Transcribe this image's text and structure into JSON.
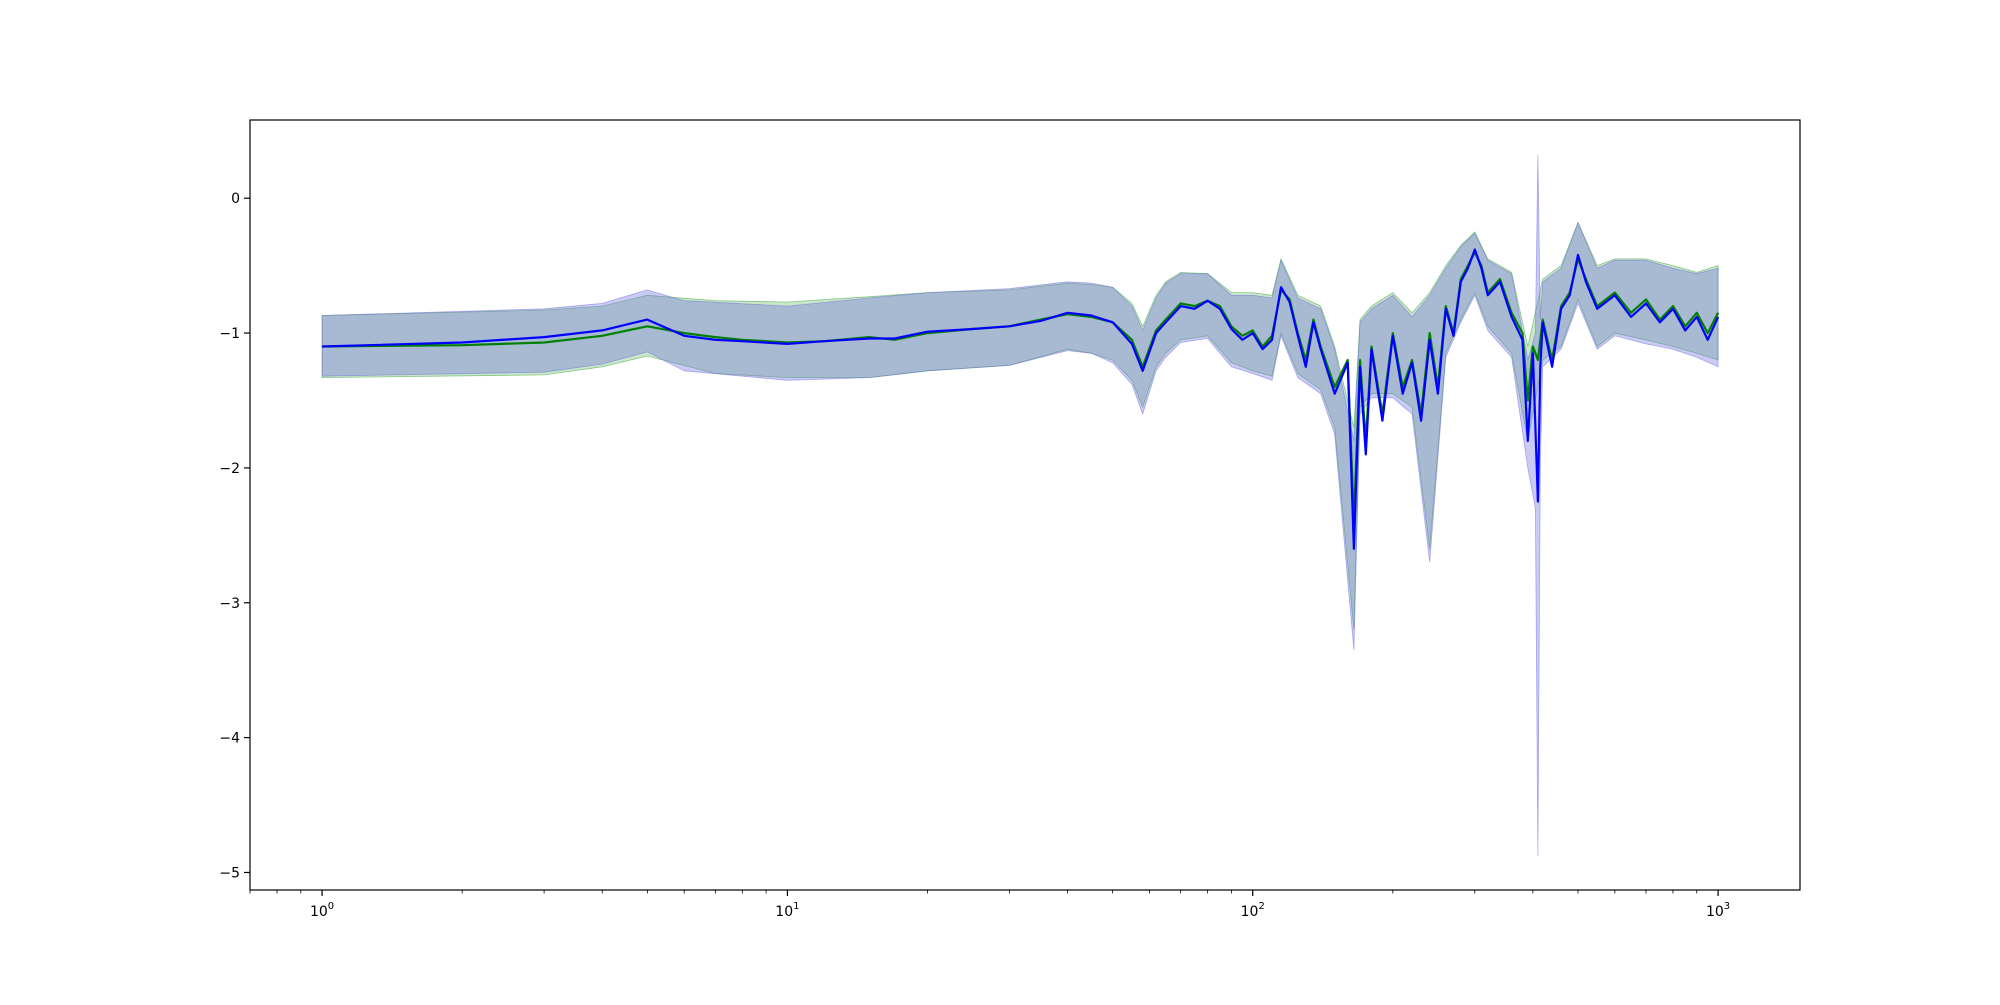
{
  "chart_data": {
    "type": "line",
    "title": "",
    "xlabel": "",
    "ylabel": "",
    "x_scale": "log",
    "xlim": [
      0.7,
      1500
    ],
    "ylim": [
      -5.13,
      0.58
    ],
    "grid": false,
    "legend": "none",
    "x_ticks": [
      {
        "value": 1,
        "label": "10",
        "exp": "0"
      },
      {
        "value": 10,
        "label": "10",
        "exp": "1"
      },
      {
        "value": 100,
        "label": "10",
        "exp": "2"
      },
      {
        "value": 1000,
        "label": "10",
        "exp": "3"
      }
    ],
    "y_ticks": [
      {
        "value": 0,
        "label": "0"
      },
      {
        "value": -1,
        "label": "−1"
      },
      {
        "value": -2,
        "label": "−2"
      },
      {
        "value": -3,
        "label": "−3"
      },
      {
        "value": -4,
        "label": "−4"
      },
      {
        "value": -5,
        "label": "−5"
      }
    ],
    "series": [
      {
        "color": "#008000",
        "band_color": "#2ca02c",
        "points": [
          [
            1,
            -1.1
          ],
          [
            2,
            -1.09
          ],
          [
            3,
            -1.07
          ],
          [
            4,
            -1.02
          ],
          [
            5,
            -0.95
          ],
          [
            6,
            -1.0
          ],
          [
            7,
            -1.03
          ],
          [
            8,
            -1.05
          ],
          [
            10,
            -1.07
          ],
          [
            12,
            -1.06
          ],
          [
            15,
            -1.03
          ],
          [
            17,
            -1.05
          ],
          [
            20,
            -1.0
          ],
          [
            25,
            -0.97
          ],
          [
            30,
            -0.95
          ],
          [
            35,
            -0.9
          ],
          [
            40,
            -0.86
          ],
          [
            45,
            -0.88
          ],
          [
            50,
            -0.92
          ],
          [
            55,
            -1.05
          ],
          [
            58,
            -1.25
          ],
          [
            62,
            -0.98
          ],
          [
            65,
            -0.9
          ],
          [
            70,
            -0.78
          ],
          [
            75,
            -0.8
          ],
          [
            80,
            -0.76
          ],
          [
            85,
            -0.8
          ],
          [
            90,
            -0.95
          ],
          [
            95,
            -1.02
          ],
          [
            100,
            -0.98
          ],
          [
            105,
            -1.1
          ],
          [
            110,
            -1.02
          ],
          [
            115,
            -0.68
          ],
          [
            120,
            -0.75
          ],
          [
            125,
            -1.0
          ],
          [
            130,
            -1.2
          ],
          [
            135,
            -0.9
          ],
          [
            140,
            -1.1
          ],
          [
            150,
            -1.4
          ],
          [
            160,
            -1.2
          ],
          [
            165,
            -2.4
          ],
          [
            170,
            -1.2
          ],
          [
            175,
            -1.8
          ],
          [
            180,
            -1.1
          ],
          [
            190,
            -1.6
          ],
          [
            200,
            -1.0
          ],
          [
            210,
            -1.4
          ],
          [
            220,
            -1.2
          ],
          [
            230,
            -1.6
          ],
          [
            240,
            -1.0
          ],
          [
            250,
            -1.4
          ],
          [
            260,
            -0.8
          ],
          [
            270,
            -1.0
          ],
          [
            280,
            -0.6
          ],
          [
            290,
            -0.5
          ],
          [
            300,
            -0.4
          ],
          [
            310,
            -0.5
          ],
          [
            320,
            -0.7
          ],
          [
            340,
            -0.6
          ],
          [
            360,
            -0.85
          ],
          [
            380,
            -1.0
          ],
          [
            390,
            -1.5
          ],
          [
            400,
            -1.1
          ],
          [
            410,
            -1.2
          ],
          [
            420,
            -0.9
          ],
          [
            440,
            -1.2
          ],
          [
            460,
            -0.8
          ],
          [
            480,
            -0.7
          ],
          [
            500,
            -0.45
          ],
          [
            520,
            -0.6
          ],
          [
            550,
            -0.8
          ],
          [
            600,
            -0.7
          ],
          [
            650,
            -0.85
          ],
          [
            700,
            -0.75
          ],
          [
            750,
            -0.9
          ],
          [
            800,
            -0.8
          ],
          [
            850,
            -0.95
          ],
          [
            900,
            -0.85
          ],
          [
            950,
            -1.0
          ],
          [
            1000,
            -0.85
          ]
        ],
        "band": [
          [
            1,
            -1.33,
            -0.87
          ],
          [
            3,
            -1.31,
            -0.83
          ],
          [
            4,
            -1.25,
            -0.8
          ],
          [
            5,
            -1.17,
            -0.72
          ],
          [
            7,
            -1.3,
            -0.76
          ],
          [
            10,
            -1.33,
            -0.77
          ],
          [
            15,
            -1.33,
            -0.73
          ],
          [
            20,
            -1.28,
            -0.7
          ],
          [
            30,
            -1.24,
            -0.68
          ],
          [
            40,
            -1.12,
            -0.63
          ],
          [
            45,
            -1.15,
            -0.64
          ],
          [
            50,
            -1.2,
            -0.66
          ],
          [
            55,
            -1.35,
            -0.78
          ],
          [
            58,
            -1.55,
            -0.95
          ],
          [
            62,
            -1.25,
            -0.72
          ],
          [
            65,
            -1.15,
            -0.62
          ],
          [
            70,
            -1.05,
            -0.55
          ],
          [
            80,
            -1.02,
            -0.56
          ],
          [
            90,
            -1.22,
            -0.7
          ],
          [
            100,
            -1.28,
            -0.7
          ],
          [
            110,
            -1.32,
            -0.72
          ],
          [
            115,
            -1.0,
            -0.45
          ],
          [
            125,
            -1.3,
            -0.72
          ],
          [
            140,
            -1.42,
            -0.8
          ],
          [
            150,
            -1.7,
            -1.1
          ],
          [
            165,
            -3.2,
            -1.7
          ],
          [
            170,
            -1.55,
            -0.9
          ],
          [
            180,
            -1.45,
            -0.8
          ],
          [
            200,
            -1.45,
            -0.7
          ],
          [
            220,
            -1.55,
            -0.85
          ],
          [
            240,
            -2.6,
            -0.7
          ],
          [
            260,
            -1.15,
            -0.5
          ],
          [
            280,
            -0.9,
            -0.35
          ],
          [
            300,
            -0.7,
            -0.25
          ],
          [
            320,
            -0.95,
            -0.45
          ],
          [
            360,
            -1.15,
            -0.55
          ],
          [
            390,
            -1.8,
            -1.1
          ],
          [
            420,
            -1.2,
            -0.6
          ],
          [
            460,
            -1.1,
            -0.5
          ],
          [
            500,
            -0.75,
            -0.18
          ],
          [
            550,
            -1.1,
            -0.5
          ],
          [
            600,
            -1.0,
            -0.45
          ],
          [
            700,
            -1.05,
            -0.45
          ],
          [
            800,
            -1.1,
            -0.5
          ],
          [
            900,
            -1.15,
            -0.55
          ],
          [
            1000,
            -1.2,
            -0.5
          ]
        ]
      },
      {
        "color": "#0000ff",
        "band_color": "#6666e0",
        "points": [
          [
            1,
            -1.1
          ],
          [
            2,
            -1.07
          ],
          [
            3,
            -1.03
          ],
          [
            4,
            -0.98
          ],
          [
            5,
            -0.9
          ],
          [
            6,
            -1.02
          ],
          [
            7,
            -1.05
          ],
          [
            8,
            -1.06
          ],
          [
            10,
            -1.08
          ],
          [
            12,
            -1.06
          ],
          [
            15,
            -1.04
          ],
          [
            17,
            -1.04
          ],
          [
            20,
            -0.99
          ],
          [
            25,
            -0.97
          ],
          [
            30,
            -0.95
          ],
          [
            35,
            -0.91
          ],
          [
            40,
            -0.85
          ],
          [
            45,
            -0.87
          ],
          [
            50,
            -0.92
          ],
          [
            55,
            -1.08
          ],
          [
            58,
            -1.28
          ],
          [
            62,
            -1.0
          ],
          [
            65,
            -0.92
          ],
          [
            70,
            -0.8
          ],
          [
            75,
            -0.82
          ],
          [
            80,
            -0.76
          ],
          [
            85,
            -0.82
          ],
          [
            90,
            -0.97
          ],
          [
            95,
            -1.05
          ],
          [
            100,
            -1.0
          ],
          [
            105,
            -1.12
          ],
          [
            110,
            -1.05
          ],
          [
            115,
            -0.66
          ],
          [
            120,
            -0.77
          ],
          [
            125,
            -1.02
          ],
          [
            130,
            -1.25
          ],
          [
            135,
            -0.92
          ],
          [
            140,
            -1.12
          ],
          [
            150,
            -1.45
          ],
          [
            160,
            -1.22
          ],
          [
            165,
            -2.6
          ],
          [
            170,
            -1.25
          ],
          [
            175,
            -1.9
          ],
          [
            180,
            -1.12
          ],
          [
            190,
            -1.65
          ],
          [
            200,
            -1.02
          ],
          [
            210,
            -1.45
          ],
          [
            220,
            -1.22
          ],
          [
            230,
            -1.65
          ],
          [
            240,
            -1.05
          ],
          [
            250,
            -1.45
          ],
          [
            260,
            -0.82
          ],
          [
            270,
            -1.02
          ],
          [
            280,
            -0.62
          ],
          [
            290,
            -0.52
          ],
          [
            300,
            -0.38
          ],
          [
            310,
            -0.52
          ],
          [
            320,
            -0.72
          ],
          [
            340,
            -0.62
          ],
          [
            360,
            -0.88
          ],
          [
            380,
            -1.05
          ],
          [
            390,
            -1.8
          ],
          [
            400,
            -1.15
          ],
          [
            410,
            -2.25
          ],
          [
            415,
            -1.25
          ],
          [
            420,
            -0.92
          ],
          [
            440,
            -1.25
          ],
          [
            460,
            -0.82
          ],
          [
            480,
            -0.72
          ],
          [
            500,
            -0.42
          ],
          [
            520,
            -0.62
          ],
          [
            550,
            -0.82
          ],
          [
            600,
            -0.72
          ],
          [
            650,
            -0.88
          ],
          [
            700,
            -0.78
          ],
          [
            750,
            -0.92
          ],
          [
            800,
            -0.82
          ],
          [
            850,
            -0.98
          ],
          [
            900,
            -0.88
          ],
          [
            950,
            -1.05
          ],
          [
            1000,
            -0.88
          ]
        ],
        "band": [
          [
            1,
            -1.32,
            -0.87
          ],
          [
            3,
            -1.29,
            -0.82
          ],
          [
            4,
            -1.23,
            -0.78
          ],
          [
            5,
            -1.14,
            -0.68
          ],
          [
            6,
            -1.28,
            -0.76
          ],
          [
            10,
            -1.35,
            -0.8
          ],
          [
            15,
            -1.33,
            -0.74
          ],
          [
            20,
            -1.28,
            -0.7
          ],
          [
            30,
            -1.24,
            -0.67
          ],
          [
            40,
            -1.13,
            -0.62
          ],
          [
            45,
            -1.15,
            -0.63
          ],
          [
            50,
            -1.22,
            -0.66
          ],
          [
            55,
            -1.38,
            -0.8
          ],
          [
            58,
            -1.6,
            -0.98
          ],
          [
            62,
            -1.28,
            -0.74
          ],
          [
            65,
            -1.18,
            -0.63
          ],
          [
            70,
            -1.07,
            -0.56
          ],
          [
            80,
            -1.04,
            -0.56
          ],
          [
            90,
            -1.25,
            -0.72
          ],
          [
            100,
            -1.3,
            -0.72
          ],
          [
            110,
            -1.35,
            -0.74
          ],
          [
            115,
            -1.02,
            -0.46
          ],
          [
            125,
            -1.33,
            -0.74
          ],
          [
            140,
            -1.45,
            -0.82
          ],
          [
            150,
            -1.75,
            -1.12
          ],
          [
            165,
            -3.35,
            -1.8
          ],
          [
            170,
            -1.6,
            -0.92
          ],
          [
            180,
            -1.48,
            -0.82
          ],
          [
            200,
            -1.48,
            -0.72
          ],
          [
            220,
            -1.6,
            -0.88
          ],
          [
            240,
            -2.7,
            -0.72
          ],
          [
            260,
            -1.18,
            -0.52
          ],
          [
            280,
            -0.92,
            -0.36
          ],
          [
            300,
            -0.72,
            -0.26
          ],
          [
            320,
            -0.98,
            -0.46
          ],
          [
            360,
            -1.18,
            -0.56
          ],
          [
            390,
            -2.0,
            -1.2
          ],
          [
            405,
            -2.3,
            -1.0
          ],
          [
            410,
            -4.88,
            0.32
          ],
          [
            415,
            -2.0,
            -0.9
          ],
          [
            420,
            -1.25,
            -0.62
          ],
          [
            460,
            -1.12,
            -0.52
          ],
          [
            500,
            -0.78,
            -0.18
          ],
          [
            550,
            -1.12,
            -0.52
          ],
          [
            600,
            -1.02,
            -0.46
          ],
          [
            700,
            -1.08,
            -0.46
          ],
          [
            800,
            -1.12,
            -0.52
          ],
          [
            900,
            -1.18,
            -0.56
          ],
          [
            1000,
            -1.25,
            -0.52
          ]
        ]
      }
    ]
  }
}
